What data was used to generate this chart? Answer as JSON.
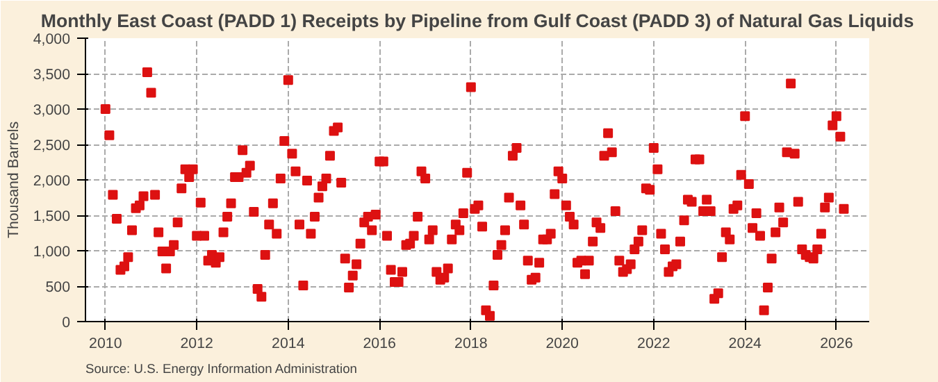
{
  "chart_data": {
    "type": "scatter",
    "title": "Monthly East Coast (PADD 1) Receipts by Pipeline from Gulf Coast (PADD 3) of Natural Gas Liquids",
    "ylabel": "Thousand Barrels",
    "annotations": [
      "Source: U.S. Energy Information Administration"
    ],
    "x": [
      "2010-01",
      "2010-02",
      "2010-03",
      "2010-04",
      "2010-05",
      "2010-06",
      "2010-07",
      "2010-08",
      "2010-09",
      "2010-10",
      "2010-11",
      "2010-12",
      "2011-01",
      "2011-02",
      "2011-03",
      "2011-04",
      "2011-05",
      "2011-06",
      "2011-07",
      "2011-08",
      "2011-09",
      "2011-10",
      "2011-11",
      "2011-12",
      "2012-01",
      "2012-02",
      "2012-03",
      "2012-04",
      "2012-05",
      "2012-06",
      "2012-07",
      "2012-08",
      "2012-09",
      "2012-10",
      "2012-11",
      "2012-12",
      "2013-01",
      "2013-02",
      "2013-03",
      "2013-04",
      "2013-05",
      "2013-06",
      "2013-07",
      "2013-08",
      "2013-09",
      "2013-10",
      "2013-11",
      "2013-12",
      "2014-01",
      "2014-02",
      "2014-03",
      "2014-04",
      "2014-05",
      "2014-06",
      "2014-07",
      "2014-08",
      "2014-09",
      "2014-10",
      "2014-11",
      "2014-12",
      "2015-01",
      "2015-02",
      "2015-03",
      "2015-04",
      "2015-05",
      "2015-06",
      "2015-07",
      "2015-08",
      "2015-09",
      "2015-10",
      "2015-11",
      "2015-12",
      "2016-01",
      "2016-02",
      "2016-03",
      "2016-04",
      "2016-05",
      "2016-06",
      "2016-07",
      "2016-08",
      "2016-09",
      "2016-10",
      "2016-11",
      "2016-12",
      "2017-01",
      "2017-02",
      "2017-03",
      "2017-04",
      "2017-05",
      "2017-06",
      "2017-07",
      "2017-08",
      "2017-09",
      "2017-10",
      "2017-11",
      "2017-12",
      "2018-01",
      "2018-02",
      "2018-03",
      "2018-04",
      "2018-05",
      "2018-06",
      "2018-07",
      "2018-08",
      "2018-09",
      "2018-10",
      "2018-11",
      "2018-12",
      "2019-01",
      "2019-02",
      "2019-03",
      "2019-04",
      "2019-05",
      "2019-06",
      "2019-07",
      "2019-08",
      "2019-09",
      "2019-10",
      "2019-11",
      "2019-12",
      "2020-01",
      "2020-02",
      "2020-03",
      "2020-04",
      "2020-05",
      "2020-06",
      "2020-07",
      "2020-08",
      "2020-09",
      "2020-10",
      "2020-11",
      "2020-12",
      "2021-01",
      "2021-02",
      "2021-03",
      "2021-04",
      "2021-05",
      "2021-06",
      "2021-07",
      "2021-08",
      "2021-09",
      "2021-10",
      "2021-11",
      "2021-12",
      "2022-01",
      "2022-02",
      "2022-03",
      "2022-04",
      "2022-05",
      "2022-06",
      "2022-07",
      "2022-08",
      "2022-09",
      "2022-10",
      "2022-11",
      "2022-12",
      "2023-01",
      "2023-02",
      "2023-03",
      "2023-04",
      "2023-05",
      "2023-06",
      "2023-07",
      "2023-08",
      "2023-09",
      "2023-10",
      "2023-11",
      "2023-12",
      "2024-01",
      "2024-02",
      "2024-03",
      "2024-04",
      "2024-05",
      "2024-06",
      "2024-07",
      "2024-08",
      "2024-09",
      "2024-10",
      "2024-11",
      "2024-12",
      "2025-01",
      "2025-02",
      "2025-03",
      "2025-04",
      "2025-05",
      "2025-06",
      "2025-07",
      "2025-08",
      "2025-09",
      "2025-10",
      "2025-11",
      "2025-12",
      "2026-01",
      "2026-02",
      "2026-03"
    ],
    "series": [
      {
        "color": "#dd1111",
        "values": [
          3000,
          2630,
          1790,
          1450,
          730,
          780,
          910,
          1290,
          1600,
          1640,
          1770,
          3520,
          3230,
          1790,
          1260,
          990,
          750,
          990,
          1080,
          1400,
          1880,
          2150,
          2040,
          2150,
          1210,
          1680,
          1210,
          860,
          940,
          830,
          910,
          1260,
          1480,
          1670,
          2040,
          2040,
          2420,
          2100,
          2200,
          1550,
          460,
          350,
          940,
          1370,
          1670,
          1240,
          2020,
          2550,
          3410,
          2370,
          2120,
          1370,
          510,
          1990,
          1240,
          1480,
          1750,
          1910,
          2020,
          2340,
          2690,
          2740,
          1960,
          890,
          480,
          650,
          810,
          1100,
          1400,
          1480,
          1290,
          1510,
          2260,
          2260,
          1210,
          730,
          560,
          560,
          700,
          1080,
          1100,
          1210,
          1480,
          2120,
          2020,
          1160,
          1290,
          700,
          590,
          620,
          750,
          1160,
          1370,
          1290,
          1530,
          2100,
          3310,
          1590,
          1640,
          1340,
          160,
          80,
          510,
          940,
          1080,
          1290,
          1750,
          2340,
          2450,
          1640,
          1370,
          860,
          590,
          620,
          830,
          1160,
          1160,
          1240,
          1800,
          2120,
          2020,
          1640,
          1480,
          1370,
          830,
          860,
          670,
          860,
          1130,
          1400,
          1320,
          2340,
          2660,
          2390,
          1560,
          860,
          700,
          740,
          810,
          1020,
          1130,
          1290,
          1880,
          1860,
          2450,
          2150,
          1240,
          1020,
          700,
          780,
          810,
          1130,
          1430,
          1720,
          1690,
          2290,
          2290,
          1560,
          1720,
          1560,
          320,
          400,
          910,
          1260,
          1160,
          1590,
          1640,
          2070,
          2900,
          1940,
          1320,
          1530,
          1210,
          160,
          480,
          890,
          1260,
          1610,
          1400,
          2390,
          3360,
          2370,
          1690,
          1020,
          940,
          910,
          890,
          1020,
          1240,
          1610,
          1750,
          2770,
          2900,
          2610,
          1590
        ]
      }
    ],
    "xlim": [
      "2009-07-25",
      "2026-09-20"
    ],
    "xticks": [
      "2010",
      "2012",
      "2014",
      "2016",
      "2018",
      "2020",
      "2022",
      "2024",
      "2026"
    ],
    "ylim": [
      0,
      4000
    ],
    "yticks": [
      {
        "value": 0,
        "label": "0"
      },
      {
        "value": 500,
        "label": "500"
      },
      {
        "value": 1000,
        "label": "1,000"
      },
      {
        "value": 1500,
        "label": "1,500"
      },
      {
        "value": 2000,
        "label": "2,000"
      },
      {
        "value": 2500,
        "label": "2,500"
      },
      {
        "value": 3000,
        "label": "3,000"
      },
      {
        "value": 3500,
        "label": "3,500"
      },
      {
        "value": 4000,
        "label": "4,000"
      }
    ],
    "grid": true,
    "marker": "square"
  }
}
